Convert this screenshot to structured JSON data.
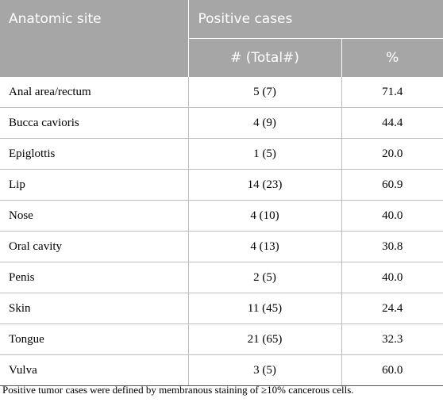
{
  "table": {
    "headers": {
      "anatomic_site": "Anatomic site",
      "positive_cases": "Positive cases",
      "total_col": "# (Total#)",
      "percent_col": "%"
    },
    "rows": [
      {
        "site": "Anal area/rectum",
        "count": "5 (7)",
        "percent": "71.4"
      },
      {
        "site": "Bucca cavioris",
        "count": "4 (9)",
        "percent": "44.4"
      },
      {
        "site": "Epiglottis",
        "count": "1 (5)",
        "percent": "20.0"
      },
      {
        "site": "Lip",
        "count": "14 (23)",
        "percent": "60.9"
      },
      {
        "site": "Nose",
        "count": "4 (10)",
        "percent": "40.0"
      },
      {
        "site": "Oral cavity",
        "count": "4 (13)",
        "percent": "30.8"
      },
      {
        "site": "Penis",
        "count": "2 (5)",
        "percent": "40.0"
      },
      {
        "site": "Skin",
        "count": "11 (45)",
        "percent": "24.4"
      },
      {
        "site": "Tongue",
        "count": "21 (65)",
        "percent": "32.3"
      },
      {
        "site": "Vulva",
        "count": "3 (5)",
        "percent": "60.0"
      }
    ]
  },
  "footnote": "Positive tumor cases were defined by membranous staining of ≥10% cancerous cells.",
  "colors": {
    "header_bg": "#a6a6a6",
    "header_text": "#ffffff",
    "row_divider": "#bdbdbd"
  }
}
